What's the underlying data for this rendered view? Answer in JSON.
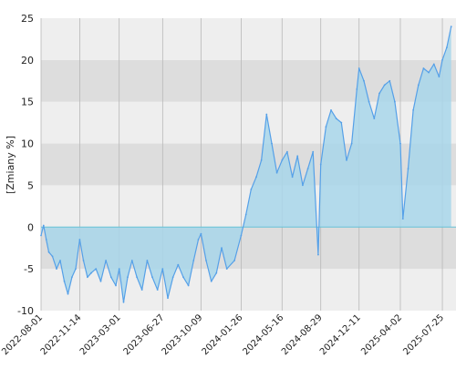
{
  "chart_data": {
    "type": "area",
    "title": "",
    "xlabel": "",
    "ylabel": "[Zmiany %]",
    "ylim": [
      -10,
      25
    ],
    "xlim": [
      "2022-08-01",
      "2025-08-31"
    ],
    "y_ticks": [
      -10,
      -5,
      0,
      5,
      10,
      15,
      20,
      25
    ],
    "x_ticks": [
      "2022-08-01",
      "2022-11-14",
      "2023-03-01",
      "2023-06-27",
      "2023-10-09",
      "2024-01-26",
      "2024-05-16",
      "2024-08-29",
      "2024-12-11",
      "2025-04-02",
      "2025-07-25"
    ],
    "grid": true,
    "legend": "none",
    "series": [
      {
        "points": [
          [
            "2022-08-01",
            -1.0
          ],
          [
            "2022-08-08",
            0.2
          ],
          [
            "2022-08-15",
            -1.5
          ],
          [
            "2022-08-22",
            -3.0
          ],
          [
            "2022-09-01",
            -3.5
          ],
          [
            "2022-09-12",
            -5.0
          ],
          [
            "2022-09-22",
            -4.0
          ],
          [
            "2022-10-03",
            -6.5
          ],
          [
            "2022-10-13",
            -8.0
          ],
          [
            "2022-10-24",
            -6.0
          ],
          [
            "2022-11-03",
            -5.0
          ],
          [
            "2022-11-14",
            -1.5
          ],
          [
            "2022-11-24",
            -4.0
          ],
          [
            "2022-12-05",
            -6.0
          ],
          [
            "2022-12-15",
            -5.5
          ],
          [
            "2022-12-28",
            -5.0
          ],
          [
            "2023-01-10",
            -6.5
          ],
          [
            "2023-01-24",
            -4.0
          ],
          [
            "2023-02-07",
            -6.0
          ],
          [
            "2023-02-20",
            -7.0
          ],
          [
            "2023-03-01",
            -5.0
          ],
          [
            "2023-03-13",
            -9.0
          ],
          [
            "2023-03-24",
            -6.0
          ],
          [
            "2023-04-05",
            -4.0
          ],
          [
            "2023-04-18",
            -6.0
          ],
          [
            "2023-05-02",
            -7.5
          ],
          [
            "2023-05-16",
            -4.0
          ],
          [
            "2023-05-30",
            -6.0
          ],
          [
            "2023-06-13",
            -7.5
          ],
          [
            "2023-06-27",
            -5.0
          ],
          [
            "2023-07-11",
            -8.5
          ],
          [
            "2023-07-25",
            -6.0
          ],
          [
            "2023-08-08",
            -4.5
          ],
          [
            "2023-08-22",
            -6.0
          ],
          [
            "2023-09-05",
            -7.0
          ],
          [
            "2023-09-19",
            -4.0
          ],
          [
            "2023-10-02",
            -1.5
          ],
          [
            "2023-10-09",
            -0.8
          ],
          [
            "2023-10-23",
            -4.0
          ],
          [
            "2023-11-06",
            -6.5
          ],
          [
            "2023-11-20",
            -5.5
          ],
          [
            "2023-12-04",
            -2.5
          ],
          [
            "2023-12-18",
            -5.0
          ],
          [
            "2024-01-08",
            -4.0
          ],
          [
            "2024-01-26",
            -1.0
          ],
          [
            "2024-02-08",
            1.5
          ],
          [
            "2024-02-22",
            4.5
          ],
          [
            "2024-03-07",
            6.0
          ],
          [
            "2024-03-21",
            8.0
          ],
          [
            "2024-04-04",
            13.5
          ],
          [
            "2024-04-18",
            10.0
          ],
          [
            "2024-05-02",
            6.5
          ],
          [
            "2024-05-16",
            8.0
          ],
          [
            "2024-05-30",
            9.0
          ],
          [
            "2024-06-13",
            6.0
          ],
          [
            "2024-06-27",
            8.5
          ],
          [
            "2024-07-11",
            5.0
          ],
          [
            "2024-07-25",
            7.0
          ],
          [
            "2024-08-08",
            9.0
          ],
          [
            "2024-08-22",
            -3.3
          ],
          [
            "2024-08-29",
            7.5
          ],
          [
            "2024-09-12",
            12.0
          ],
          [
            "2024-09-26",
            14.0
          ],
          [
            "2024-10-10",
            13.0
          ],
          [
            "2024-10-24",
            12.5
          ],
          [
            "2024-11-07",
            8.0
          ],
          [
            "2024-11-21",
            10.0
          ],
          [
            "2024-12-05",
            16.5
          ],
          [
            "2024-12-11",
            19.0
          ],
          [
            "2024-12-24",
            17.5
          ],
          [
            "2025-01-07",
            15.0
          ],
          [
            "2025-01-21",
            13.0
          ],
          [
            "2025-02-04",
            16.0
          ],
          [
            "2025-02-18",
            17.0
          ],
          [
            "2025-03-04",
            17.5
          ],
          [
            "2025-03-18",
            15.0
          ],
          [
            "2025-04-02",
            10.0
          ],
          [
            "2025-04-09",
            1.0
          ],
          [
            "2025-04-23",
            7.0
          ],
          [
            "2025-05-07",
            14.0
          ],
          [
            "2025-05-21",
            17.0
          ],
          [
            "2025-06-04",
            19.0
          ],
          [
            "2025-06-18",
            18.5
          ],
          [
            "2025-07-02",
            19.5
          ],
          [
            "2025-07-16",
            18.0
          ],
          [
            "2025-07-25",
            20.0
          ],
          [
            "2025-08-06",
            21.5
          ],
          [
            "2025-08-18",
            24.0
          ]
        ]
      }
    ],
    "colors": {
      "line": "#55a0e8",
      "fill": "#a8d6ea",
      "fill_negative": "#a9cfdf",
      "zero_line": "#66c2d6",
      "band_light": "#eeeeee",
      "band_dark": "#dddddd",
      "grid": "#b8b8b8"
    }
  }
}
